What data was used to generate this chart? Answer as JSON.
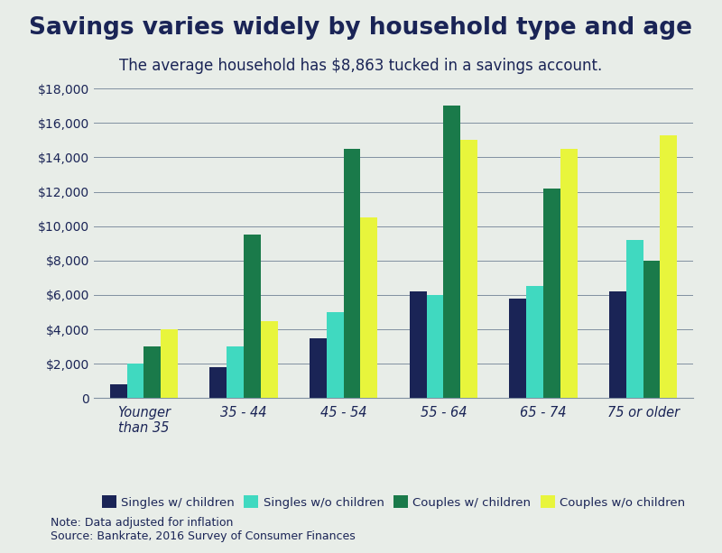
{
  "title": "Savings varies widely by household type and age",
  "subtitle": "The average household has $8,863 tucked in a savings account.",
  "categories": [
    "Younger\nthan 35",
    "35 - 44",
    "45 - 54",
    "55 - 64",
    "65 - 74",
    "75 or older"
  ],
  "series": [
    {
      "label": "Singles w/ children",
      "color": "#1a2456",
      "values": [
        800,
        1800,
        3500,
        6200,
        5800,
        6200
      ]
    },
    {
      "label": "Singles w/o children",
      "color": "#40d9c0",
      "values": [
        2000,
        3000,
        5000,
        6000,
        6500,
        9200
      ]
    },
    {
      "label": "Couples w/ children",
      "color": "#1a7a4a",
      "values": [
        3000,
        9500,
        14500,
        17000,
        12200,
        8000
      ]
    },
    {
      "label": "Couples w/o children",
      "color": "#e8f53c",
      "values": [
        4000,
        4500,
        10500,
        15000,
        14500,
        15300
      ]
    }
  ],
  "ylim": [
    0,
    18000
  ],
  "yticks": [
    0,
    2000,
    4000,
    6000,
    8000,
    10000,
    12000,
    14000,
    16000,
    18000
  ],
  "background_color": "#e8ede8",
  "plot_bg_color": "#e8ede8",
  "grid_color": "#8090a0",
  "title_color": "#1a2456",
  "subtitle_color": "#1a2456",
  "tick_color": "#1a2456",
  "title_fontsize": 19,
  "subtitle_fontsize": 12,
  "note_text": "Note: Data adjusted for inflation\nSource: Bankrate, 2016 Survey of Consumer Finances"
}
